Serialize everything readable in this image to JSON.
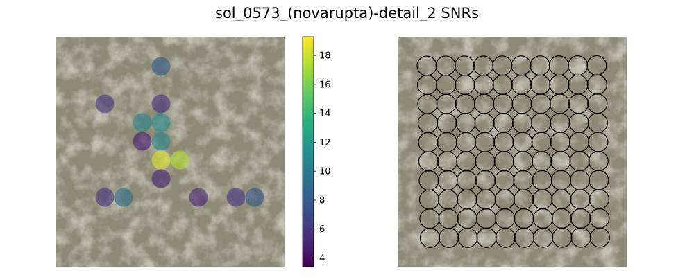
{
  "title": "sol_0573_(novarupta)-detail_2 SNRs",
  "colors": {
    "terrain_base": "#8c8a74",
    "terrain_dark": "#5f5a4a",
    "terrain_light": "#b7b2a0",
    "ring_stroke": "#000000",
    "colormap": [
      "#440154",
      "#3b528b",
      "#21918c",
      "#5ec962",
      "#fde725"
    ]
  },
  "chart_data": [
    {
      "type": "scatter",
      "panel": "snr-overlay",
      "title": "",
      "xlabel": "",
      "ylabel": "",
      "grid": false,
      "axes_visible": false,
      "background": "rock terrain image",
      "points": [
        {
          "col": 5,
          "row": 1,
          "snr": 8.0
        },
        {
          "col": 2,
          "row": 3,
          "snr": 6.0
        },
        {
          "col": 5,
          "row": 3,
          "snr": 5.5
        },
        {
          "col": 4,
          "row": 4,
          "snr": 10.5
        },
        {
          "col": 5,
          "row": 4,
          "snr": 11.0
        },
        {
          "col": 4,
          "row": 5,
          "snr": 4.5
        },
        {
          "col": 5,
          "row": 5,
          "snr": 10.5
        },
        {
          "col": 5,
          "row": 6,
          "snr": 18.5
        },
        {
          "col": 6,
          "row": 6,
          "snr": 17.5
        },
        {
          "col": 5,
          "row": 7,
          "snr": 5.0
        },
        {
          "col": 2,
          "row": 8,
          "snr": 6.0
        },
        {
          "col": 3,
          "row": 8,
          "snr": 9.0
        },
        {
          "col": 7,
          "row": 8,
          "snr": 5.0
        },
        {
          "col": 9,
          "row": 8,
          "snr": 6.0
        },
        {
          "col": 10,
          "row": 8,
          "snr": 7.5
        }
      ]
    },
    {
      "type": "heatmap",
      "panel": "colorbar",
      "range": [
        3.4,
        19.3
      ],
      "ticks": [
        4,
        6,
        8,
        10,
        12,
        14,
        16,
        18
      ],
      "colormap": "viridis"
    },
    {
      "type": "scatter",
      "panel": "sampling-grid",
      "title": "",
      "grid": false,
      "axes_visible": false,
      "background": "rock terrain image",
      "marker": "open circle",
      "rows": 10,
      "cols": 10
    }
  ]
}
